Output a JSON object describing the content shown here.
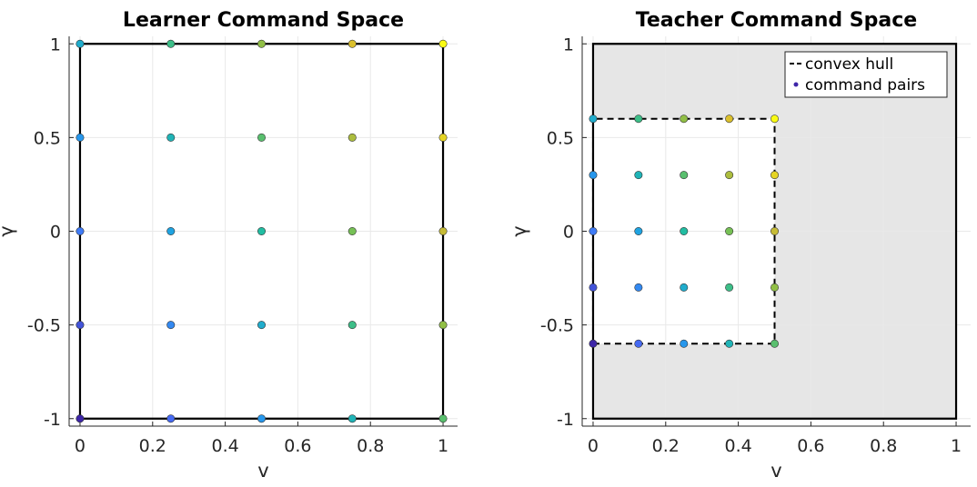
{
  "chart_data": [
    {
      "type": "scatter",
      "title": "Learner Command Space",
      "xlabel": "v",
      "ylabel": "γ",
      "xlim": [
        -0.03,
        1.04
      ],
      "ylim": [
        -1.04,
        1.04
      ],
      "xticks": [
        "0",
        "0.2",
        "0.4",
        "0.6",
        "0.8",
        "1"
      ],
      "yticks": [
        "-1",
        "-0.5",
        "0",
        "0.5",
        "1"
      ],
      "grid": true,
      "boundary": [
        [
          0,
          -1
        ],
        [
          1,
          -1
        ],
        [
          1,
          1
        ],
        [
          0,
          1
        ]
      ],
      "series": [
        {
          "x": [
            0,
            0,
            0,
            0,
            0,
            0.25,
            0.25,
            0.25,
            0.25,
            0.25,
            0.5,
            0.5,
            0.5,
            0.5,
            0.5,
            0.75,
            0.75,
            0.75,
            0.75,
            0.75,
            1,
            1,
            1,
            1,
            1
          ],
          "y": [
            -1,
            -0.5,
            0,
            0.5,
            1,
            -1,
            -0.5,
            0,
            0.5,
            1,
            -1,
            -0.5,
            0,
            0.5,
            1,
            -1,
            -0.5,
            0,
            0.5,
            1,
            -1,
            -0.5,
            0,
            0.5,
            1
          ]
        }
      ]
    },
    {
      "type": "scatter",
      "title": "Teacher Command Space",
      "xlabel": "v",
      "ylabel": "γ",
      "xlim": [
        -0.03,
        1.04
      ],
      "ylim": [
        -1.04,
        1.04
      ],
      "xticks": [
        "0",
        "0.2",
        "0.4",
        "0.6",
        "0.8",
        "1"
      ],
      "yticks": [
        "-1",
        "-0.5",
        "0",
        "0.5",
        "1"
      ],
      "grid": true,
      "legend_position": "top-right",
      "boundary": [
        [
          0,
          -1
        ],
        [
          1,
          -1
        ],
        [
          1,
          1
        ],
        [
          0,
          1
        ]
      ],
      "hull": [
        [
          0,
          -0.6
        ],
        [
          0.5,
          -0.6
        ],
        [
          0.5,
          0.6
        ],
        [
          0,
          0.6
        ]
      ],
      "series": [
        {
          "name": "convex hull",
          "style": "dashed-line",
          "x": [
            0,
            0.5,
            0.5,
            0,
            0
          ],
          "y": [
            -0.6,
            -0.6,
            0.6,
            0.6,
            -0.6
          ]
        },
        {
          "name": "command pairs",
          "x": [
            0,
            0,
            0,
            0,
            0,
            0.125,
            0.125,
            0.125,
            0.125,
            0.125,
            0.25,
            0.25,
            0.25,
            0.25,
            0.25,
            0.375,
            0.375,
            0.375,
            0.375,
            0.375,
            0.5,
            0.5,
            0.5,
            0.5,
            0.5
          ],
          "y": [
            -0.6,
            -0.3,
            0,
            0.3,
            0.6,
            -0.6,
            -0.3,
            0,
            0.3,
            0.6,
            -0.6,
            -0.3,
            0,
            0.3,
            0.6,
            -0.6,
            -0.3,
            0,
            0.3,
            0.6,
            -0.6,
            -0.3,
            0,
            0.3,
            0.6
          ]
        }
      ]
    }
  ],
  "colors": {
    "shade": "#e6e6e6",
    "grid": "#e9e9e9",
    "axis": "#262626",
    "colormap": [
      "#3e26a8",
      "#4772fa",
      "#1fa0e8",
      "#21bda2",
      "#7fc04c",
      "#d8ba30",
      "#f9fb14"
    ]
  }
}
